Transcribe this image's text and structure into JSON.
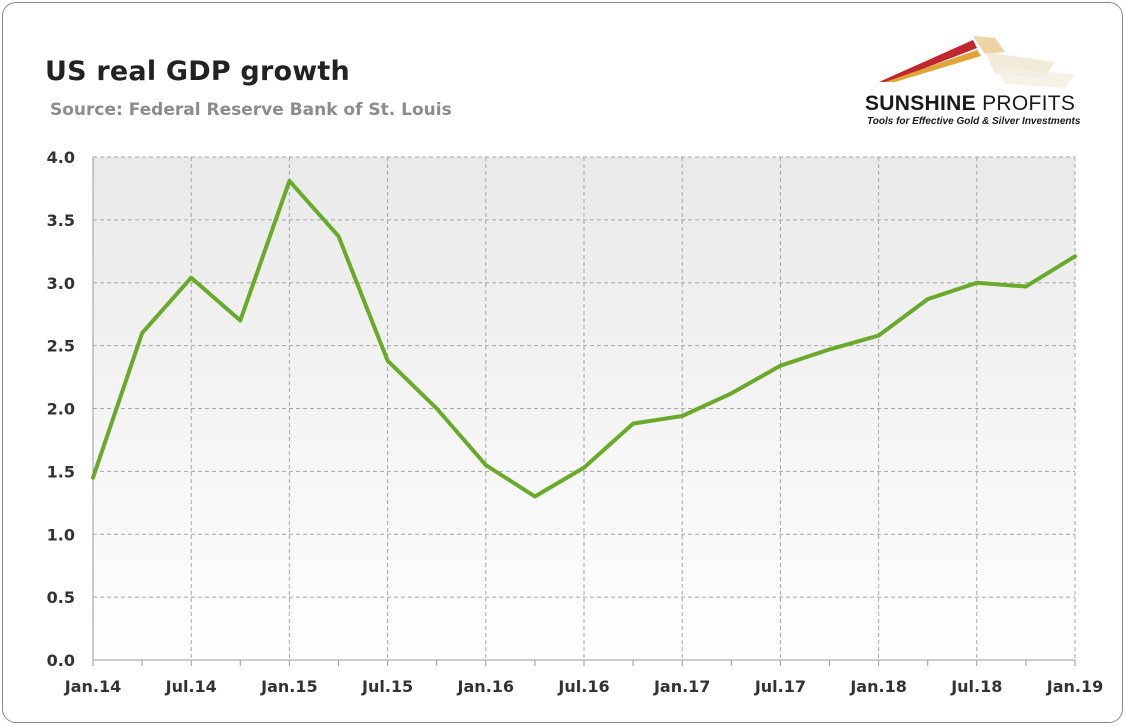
{
  "header": {
    "title": "US real GDP growth",
    "subtitle": "Source: Federal Reserve Bank of St. Louis"
  },
  "logo": {
    "name_bold": "SUNSHINE",
    "name_light": "PROFITS",
    "tagline": "Tools for Effective Gold & Silver Investments"
  },
  "colors": {
    "line": "#6aaa2a",
    "grid": "#a6a6a6",
    "logo_red": "#c0262d",
    "logo_gold": "#e0a437"
  },
  "chart_data": {
    "type": "line",
    "title": "US real GDP growth",
    "subtitle": "Source: Federal Reserve Bank of St. Louis",
    "xlabel": "",
    "ylabel": "",
    "ylim": [
      0,
      4.0
    ],
    "yticks": [
      "0.0",
      "0.5",
      "1.0",
      "1.5",
      "2.0",
      "2.5",
      "3.0",
      "3.5",
      "4.0"
    ],
    "xticks": [
      "Jan.14",
      "Jul.14",
      "Jan.15",
      "Jul.15",
      "Jan.16",
      "Jul.16",
      "Jan.17",
      "Jul.17",
      "Jan.18",
      "Jul.18",
      "Jan.19"
    ],
    "grid": true,
    "legend": "none",
    "series": [
      {
        "name": "US real GDP growth",
        "x": [
          "Jan.14",
          "Apr.14",
          "Jul.14",
          "Oct.14",
          "Jan.15",
          "Apr.15",
          "Jul.15",
          "Oct.15",
          "Jan.16",
          "Apr.16",
          "Jul.16",
          "Oct.16",
          "Jan.17",
          "Apr.17",
          "Jul.17",
          "Oct.17",
          "Jan.18",
          "Apr.18",
          "Jul.18",
          "Oct.18",
          "Jan.19"
        ],
        "values": [
          1.45,
          2.6,
          3.04,
          2.7,
          3.81,
          3.37,
          2.38,
          2.0,
          1.55,
          1.3,
          1.53,
          1.88,
          1.94,
          2.12,
          2.34,
          2.47,
          2.58,
          2.87,
          3.0,
          2.97,
          3.21
        ]
      }
    ]
  }
}
